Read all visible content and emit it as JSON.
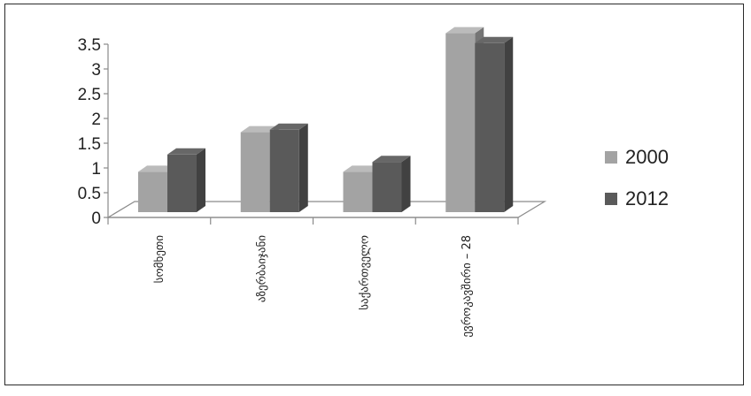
{
  "chart_data": {
    "type": "bar",
    "style": "3d-clustered-column",
    "categories": [
      "სომხეთი",
      "აზერბაიჯანი",
      "საქართველო",
      "ევროკავშირი – 28"
    ],
    "series": [
      {
        "name": "2000",
        "values": [
          0.6,
          1.4,
          0.6,
          3.4
        ],
        "color": "#a3a3a3"
      },
      {
        "name": "2012",
        "values": [
          0.95,
          1.45,
          0.8,
          3.2
        ],
        "color": "#5a5a5a"
      }
    ],
    "yticks": [
      "0",
      "0.5",
      "1",
      "1.5",
      "2",
      "2.5",
      "3",
      "3.5"
    ],
    "ylim": [
      0,
      3.5
    ],
    "legend_position": "right",
    "title": "",
    "xlabel": "",
    "ylabel": ""
  }
}
